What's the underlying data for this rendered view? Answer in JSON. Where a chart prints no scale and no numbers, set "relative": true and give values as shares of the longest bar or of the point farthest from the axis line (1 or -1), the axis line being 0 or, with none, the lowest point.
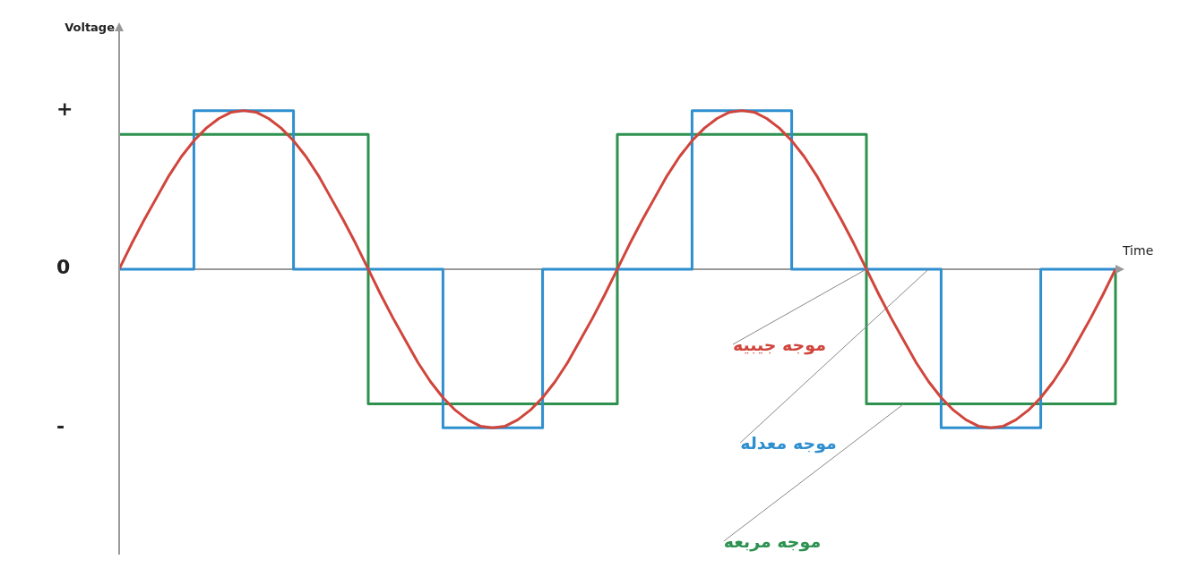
{
  "chart_data": {
    "type": "line",
    "xlabel": "Time",
    "marker": "none",
    "categories": [
      null,
      null,
      null,
      null,
      null,
      null,
      null,
      null,
      null,
      null,
      null,
      null,
      null,
      null,
      null,
      null,
      null,
      null,
      null,
      null,
      null,
      null,
      null,
      null,
      null,
      null,
      null,
      null,
      null,
      null,
      null,
      null,
      null,
      null,
      null,
      null,
      null,
      null,
      null,
      null,
      null,
      null,
      null,
      null,
      null,
      null,
      null,
      null,
      null,
      null,
      null,
      null,
      null,
      null,
      null,
      null,
      null,
      null,
      null,
      null,
      null,
      null,
      null,
      null,
      null,
      null,
      null,
      null,
      null,
      null,
      null,
      null,
      null,
      null,
      null,
      null,
      null,
      null,
      null,
      null,
      null
    ],
    "relative": true,
    "annotations": [
      "+",
      "0",
      "-",
      "Voltage"
    ],
    "series": [
      {
        "name": "موجه جيبيه",
        "type": "line",
        "color": "#d0453c",
        "values": [
          0,
          0.16,
          0.31,
          0.45,
          0.59,
          0.71,
          0.81,
          0.89,
          0.95,
          0.99,
          1,
          0.99,
          0.95,
          0.89,
          0.81,
          0.71,
          0.59,
          0.45,
          0.31,
          0.16,
          0,
          -0.16,
          -0.31,
          -0.45,
          -0.59,
          -0.71,
          -0.81,
          -0.89,
          -0.95,
          -0.99,
          -1,
          -0.99,
          -0.95,
          -0.89,
          -0.81,
          -0.71,
          -0.59,
          -0.45,
          -0.31,
          -0.16,
          0,
          0.16,
          0.31,
          0.45,
          0.59,
          0.71,
          0.81,
          0.89,
          0.95,
          0.99,
          1,
          0.99,
          0.95,
          0.89,
          0.81,
          0.71,
          0.59,
          0.45,
          0.31,
          0.16,
          0,
          -0.16,
          -0.31,
          -0.45,
          -0.59,
          -0.71,
          -0.81,
          -0.89,
          -0.95,
          -0.99,
          -1,
          -0.99,
          -0.95,
          -0.89,
          -0.81,
          -0.71,
          -0.59,
          -0.45,
          -0.31,
          -0.16,
          0
        ]
      },
      {
        "name": "موجه معدله",
        "type": "step",
        "color": "#2f8fcf",
        "values": [
          0,
          0,
          0,
          0,
          0,
          0,
          1,
          1,
          1,
          1,
          1,
          1,
          1,
          1,
          0,
          0,
          0,
          0,
          0,
          0,
          0,
          0,
          0,
          0,
          0,
          0,
          -1,
          -1,
          -1,
          -1,
          -1,
          -1,
          -1,
          -1,
          0,
          0,
          0,
          0,
          0,
          0,
          0,
          0,
          0,
          0,
          0,
          0,
          1,
          1,
          1,
          1,
          1,
          1,
          1,
          1,
          0,
          0,
          0,
          0,
          0,
          0,
          0,
          0,
          0,
          0,
          0,
          0,
          -1,
          -1,
          -1,
          -1,
          -1,
          -1,
          -1,
          -1,
          0,
          0,
          0,
          0,
          0,
          0,
          0
        ]
      },
      {
        "name": "موجه مربعه",
        "type": "step",
        "color": "#2e9150",
        "values": [
          0.85,
          0.85,
          0.85,
          0.85,
          0.85,
          0.85,
          0.85,
          0.85,
          0.85,
          0.85,
          0.85,
          0.85,
          0.85,
          0.85,
          0.85,
          0.85,
          0.85,
          0.85,
          0.85,
          0.85,
          -0.85,
          -0.85,
          -0.85,
          -0.85,
          -0.85,
          -0.85,
          -0.85,
          -0.85,
          -0.85,
          -0.85,
          -0.85,
          -0.85,
          -0.85,
          -0.85,
          -0.85,
          -0.85,
          -0.85,
          -0.85,
          -0.85,
          -0.85,
          0.85,
          0.85,
          0.85,
          0.85,
          0.85,
          0.85,
          0.85,
          0.85,
          0.85,
          0.85,
          0.85,
          0.85,
          0.85,
          0.85,
          0.85,
          0.85,
          0.85,
          0.85,
          0.85,
          0.85,
          -0.85,
          -0.85,
          -0.85,
          -0.85,
          -0.85,
          -0.85,
          -0.85,
          -0.85,
          -0.85,
          -0.85,
          -0.85,
          -0.85,
          -0.85,
          -0.85,
          -0.85,
          -0.85,
          -0.85,
          -0.85,
          -0.85,
          -0.85,
          0
        ]
      }
    ]
  }
}
